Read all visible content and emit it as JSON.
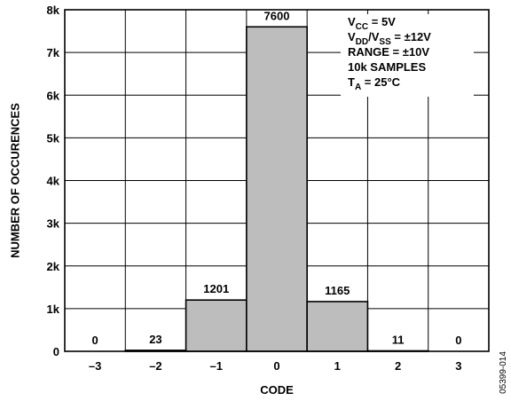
{
  "chart_data": {
    "type": "bar",
    "title": "",
    "xlabel": "CODE",
    "ylabel": "NUMBER OF OCCURENCES",
    "categories": [
      "–3",
      "–2",
      "–1",
      "0",
      "1",
      "2",
      "3"
    ],
    "values": [
      0,
      23,
      1201,
      7600,
      1165,
      11,
      0
    ],
    "data_labels": [
      "0",
      "23",
      "1201",
      "7600",
      "1165",
      "11",
      "0"
    ],
    "ylim": [
      0,
      8000
    ],
    "yticks": [
      0,
      1000,
      2000,
      3000,
      4000,
      5000,
      6000,
      7000,
      8000
    ],
    "ytick_labels": [
      "0",
      "1k",
      "2k",
      "3k",
      "4k",
      "5k",
      "6k",
      "7k",
      "8k"
    ],
    "grid": true,
    "legend": "none",
    "bar_color": "#bdbdbd",
    "annotation_placement": "top-right",
    "annotation_lines": [
      {
        "parts": [
          {
            "t": "V"
          },
          {
            "t": "CC",
            "sub": true
          },
          {
            "t": " = 5V"
          }
        ]
      },
      {
        "parts": [
          {
            "t": "V"
          },
          {
            "t": "DD",
            "sub": true
          },
          {
            "t": "/V"
          },
          {
            "t": "SS",
            "sub": true
          },
          {
            "t": " = ±12V"
          }
        ]
      },
      {
        "parts": [
          {
            "t": "RANGE = ±10V"
          }
        ]
      },
      {
        "parts": [
          {
            "t": "10k SAMPLES"
          }
        ]
      },
      {
        "parts": [
          {
            "t": "T"
          },
          {
            "t": "A",
            "sub": true
          },
          {
            "t": " = 25°C"
          }
        ]
      }
    ]
  },
  "figure_id": "05399-014"
}
